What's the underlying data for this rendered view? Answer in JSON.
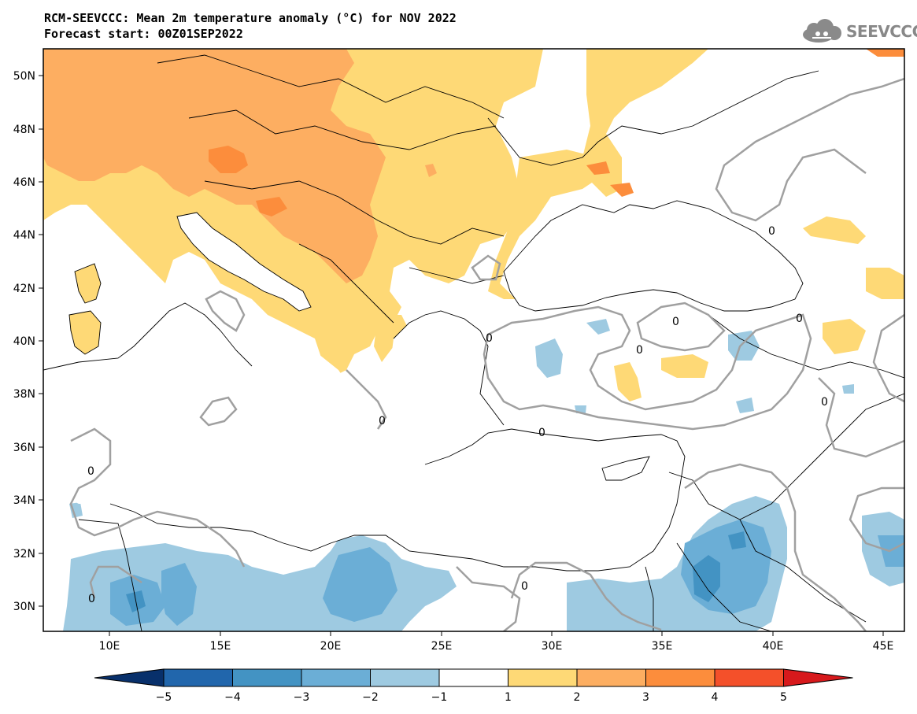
{
  "title_line1": "RCM-SEEVCCC: Mean 2m temperature anomaly (°C) for NOV 2022",
  "title_line2": "Forecast start: 00Z01SEP2022",
  "logo_text": "SEEVCCC",
  "logo_icon": "cloud-icon",
  "map": {
    "lat_labels": [
      "50N",
      "48N",
      "46N",
      "44N",
      "42N",
      "40N",
      "38N",
      "36N",
      "34N",
      "32N",
      "30N"
    ],
    "lon_labels": [
      "10E",
      "15E",
      "20E",
      "25E",
      "30E",
      "35E",
      "40E",
      "45E"
    ],
    "contour_label": "0"
  },
  "colorbar": {
    "ticks": [
      "-5",
      "-4",
      "-3",
      "-2",
      "-1",
      "1",
      "2",
      "3",
      "4",
      "5"
    ],
    "colors": [
      "#08306b",
      "#2166ac",
      "#4393c3",
      "#6baed6",
      "#9ecae1",
      "#ffffff",
      "#fed976",
      "#fdae61",
      "#fc8d3c",
      "#f4502a",
      "#d7191c"
    ]
  }
}
